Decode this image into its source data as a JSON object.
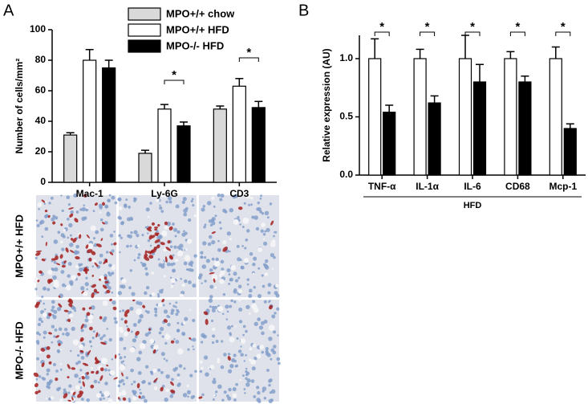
{
  "panel_labels": [
    "A",
    "B"
  ],
  "chart_data": [
    {
      "type": "bar",
      "ylabel": "Number of cells/mm²",
      "categories": [
        "Mac-1",
        "Ly-6G",
        "CD3"
      ],
      "series": [
        {
          "name": "MPO+/+ chow",
          "color": "#d9d9d9",
          "values": [
            31,
            19,
            48
          ],
          "errors": [
            1.5,
            2,
            2
          ]
        },
        {
          "name": "MPO+/+ HFD",
          "color": "#ffffff",
          "values": [
            80,
            48,
            63
          ],
          "errors": [
            7,
            3,
            5
          ]
        },
        {
          "name": "MPO-/-  HFD",
          "color": "#000000",
          "values": [
            75,
            37,
            49
          ],
          "errors": [
            5,
            2.5,
            4
          ]
        }
      ],
      "significance": [
        null,
        "*",
        "*"
      ],
      "ylim": [
        0,
        100
      ],
      "yticks": [
        0,
        20,
        40,
        60,
        80,
        100
      ]
    },
    {
      "type": "bar",
      "ylabel": "Relative expression (AU)",
      "xlabel": "HFD",
      "categories": [
        "TNF-α",
        "IL-1α",
        "IL-6",
        "CD68",
        "Mcp-1"
      ],
      "series": [
        {
          "color": "#ffffff",
          "values": [
            1.0,
            1.0,
            1.0,
            1.0,
            1.0
          ],
          "errors": [
            0.17,
            0.08,
            0.2,
            0.06,
            0.1
          ]
        },
        {
          "color": "#000000",
          "values": [
            0.54,
            0.62,
            0.8,
            0.8,
            0.4
          ],
          "errors": [
            0.06,
            0.06,
            0.15,
            0.05,
            0.04
          ]
        }
      ],
      "significance": [
        "*",
        "*",
        "*",
        "*",
        "*"
      ],
      "ylim": [
        0,
        1.2
      ],
      "yticks": [
        {
          "value": 0,
          "label": "0.0"
        },
        {
          "value": 0.5,
          "label": "0.5"
        },
        {
          "value": 1,
          "label": "1.0"
        }
      ]
    }
  ],
  "images": {
    "row_labels": [
      "MPO+/+ HFD",
      "MPO-/- HFD"
    ]
  }
}
